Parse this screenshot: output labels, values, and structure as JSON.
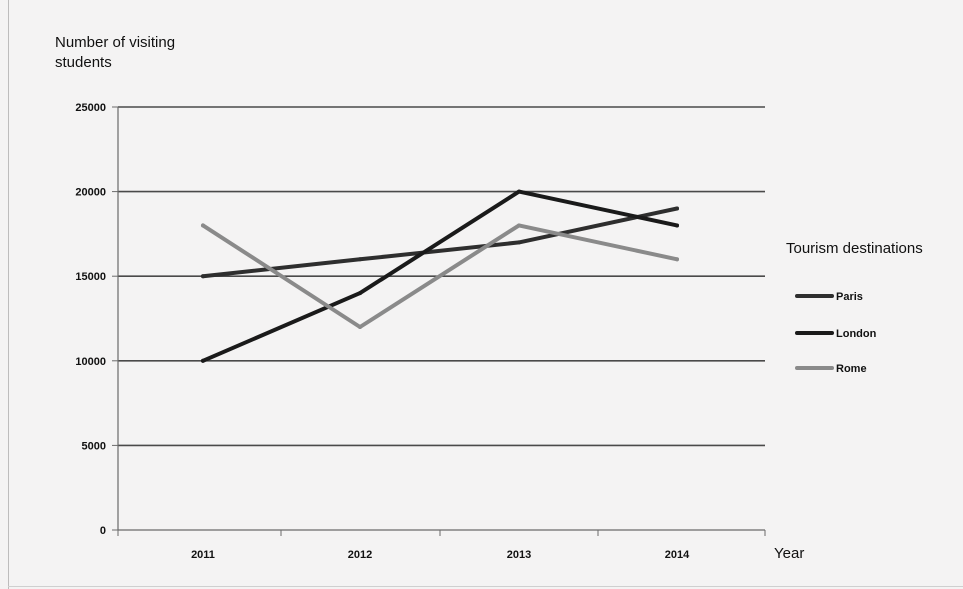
{
  "chart_data": {
    "type": "line",
    "ylabel": "Number of visiting students",
    "xlabel": "Year",
    "categories": [
      "2011",
      "2012",
      "2013",
      "2014"
    ],
    "ylim": [
      0,
      25000
    ],
    "yticks": [
      0,
      5000,
      10000,
      15000,
      20000,
      25000
    ],
    "grid": true,
    "legend_title": "Tourism destinations",
    "legend_position": "right",
    "series": [
      {
        "name": "Paris",
        "values": [
          15000,
          16000,
          17000,
          19000
        ],
        "color": "#2e2e2e"
      },
      {
        "name": "London",
        "values": [
          10000,
          14000,
          20000,
          18000
        ],
        "color": "#1a1a1a"
      },
      {
        "name": "Rome",
        "values": [
          18000,
          12000,
          18000,
          16000
        ],
        "color": "#8a8a8a"
      }
    ]
  }
}
